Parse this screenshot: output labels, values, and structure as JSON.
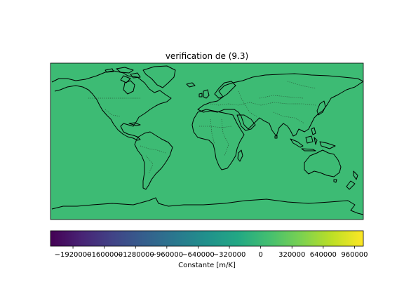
{
  "title": "verification de (9.3)",
  "map": {
    "fill_color": "#3dbb74",
    "coastline_color": "#000000",
    "border_style": "dotted"
  },
  "colorbar": {
    "label": "Constante [m/K]",
    "colormap": "viridis",
    "vmin": -2150000,
    "vmax": 1050000,
    "ticks": [
      -1920000,
      -1600000,
      -1280000,
      -960000,
      -640000,
      -320000,
      0,
      320000,
      640000,
      960000
    ],
    "tick_labels": [
      "−1920000",
      "−1600000",
      "−1280000",
      "−960000",
      "−640000",
      "−320000",
      "0",
      "320000",
      "640000",
      "960000"
    ]
  }
}
